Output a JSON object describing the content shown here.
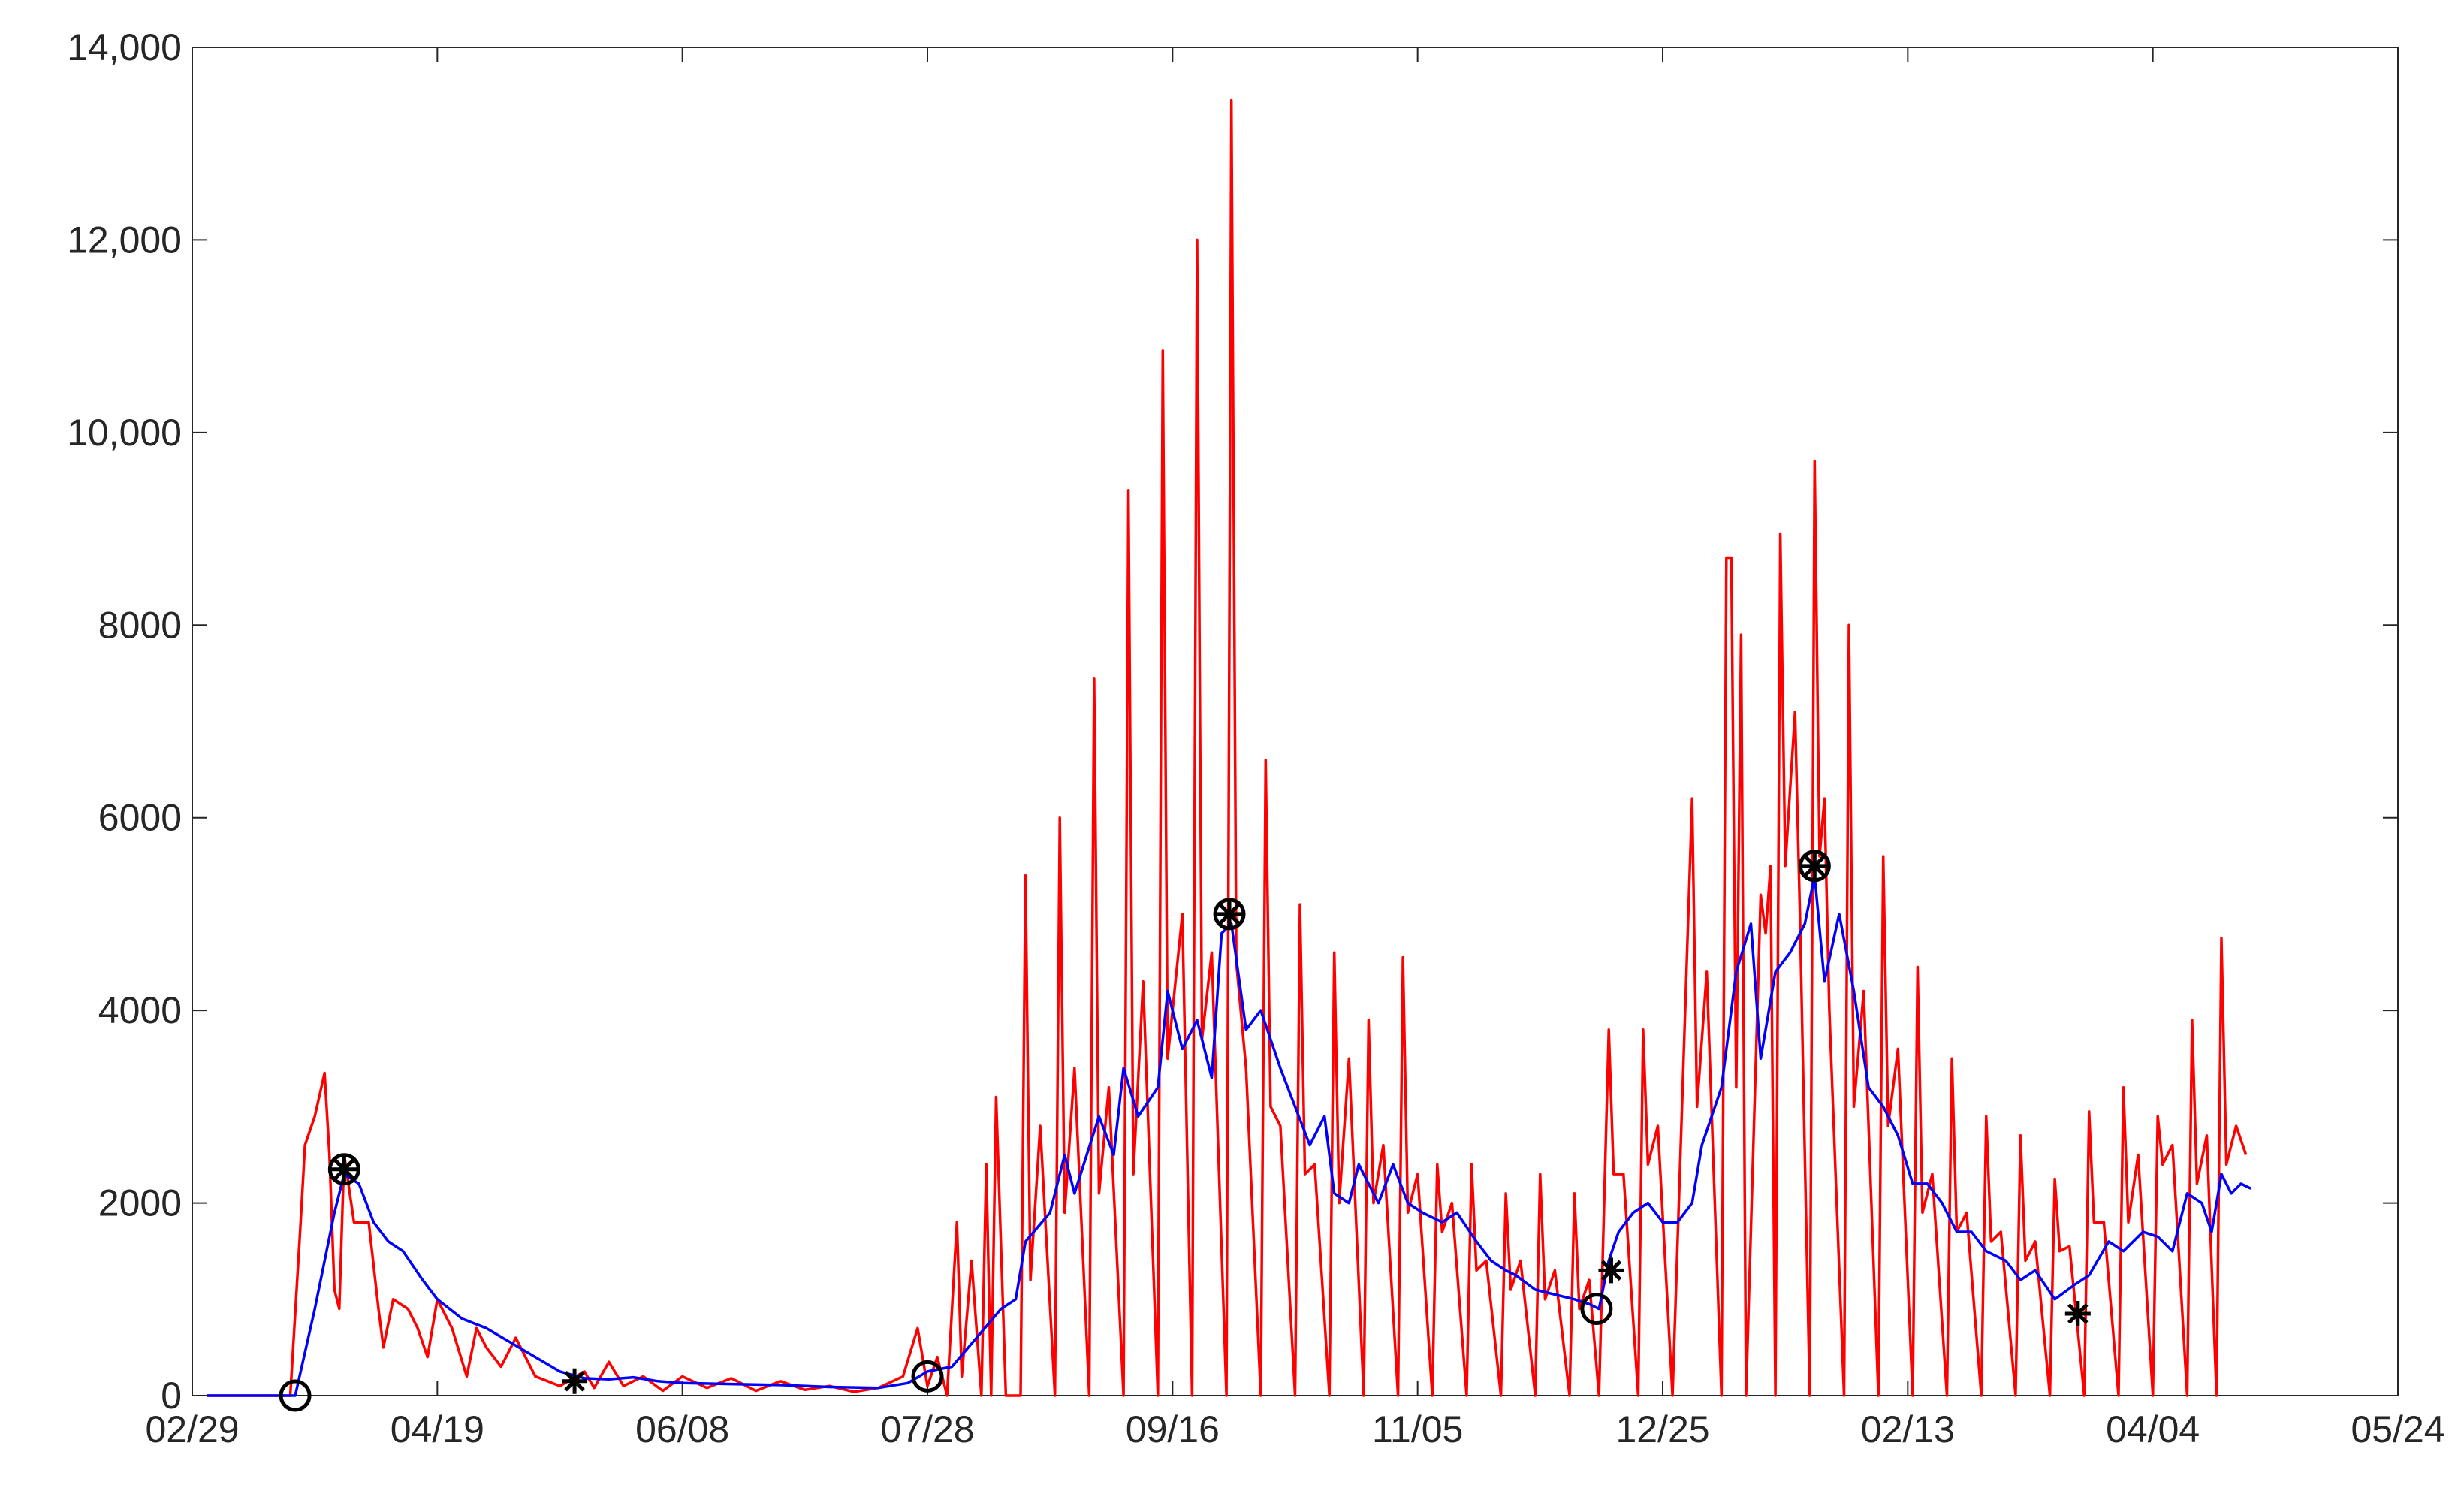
{
  "chart_data": {
    "type": "line",
    "xlim": [
      0,
      450
    ],
    "xticks": [
      {
        "value": 0,
        "label": "02/29"
      },
      {
        "value": 50,
        "label": "04/19"
      },
      {
        "value": 100,
        "label": "06/08"
      },
      {
        "value": 150,
        "label": "07/28"
      },
      {
        "value": 200,
        "label": "09/16"
      },
      {
        "value": 250,
        "label": "11/05"
      },
      {
        "value": 300,
        "label": "12/25"
      },
      {
        "value": 350,
        "label": "02/13"
      },
      {
        "value": 400,
        "label": "04/04"
      },
      {
        "value": 450,
        "label": "05/24"
      }
    ],
    "ylim": [
      0,
      14000
    ],
    "yticks": [
      0,
      2000,
      4000,
      6000,
      8000,
      {
        "value": 10000,
        "label": "10,000"
      },
      {
        "value": 12000,
        "label": "12,000"
      },
      {
        "value": 14000,
        "label": "14,000"
      }
    ],
    "series": [
      {
        "color": "#ff0000",
        "x": [
          3,
          20,
          22,
          23,
          25,
          27,
          28,
          29,
          30,
          31,
          33,
          36,
          38,
          39,
          41,
          44,
          46,
          48,
          50,
          53,
          56,
          58,
          60,
          63,
          66,
          70,
          75,
          80,
          82,
          85,
          88,
          92,
          96,
          100,
          105,
          110,
          115,
          120,
          125,
          130,
          135,
          140,
          145,
          148,
          150,
          152,
          154,
          156,
          157,
          159,
          161,
          162,
          163,
          164,
          166,
          169,
          170,
          171,
          173,
          176,
          177,
          178,
          180,
          183,
          184,
          185,
          187,
          190,
          191,
          192,
          194,
          197,
          198,
          199,
          202,
          204,
          205,
          206,
          208,
          211,
          212,
          213,
          215,
          218,
          219,
          220,
          222,
          225,
          226,
          227,
          229,
          232,
          233,
          234,
          236,
          239,
          240,
          241,
          243,
          246,
          247,
          248,
          250,
          253,
          254,
          255,
          257,
          260,
          261,
          262,
          264,
          267,
          268,
          269,
          271,
          274,
          275,
          276,
          278,
          281,
          282,
          283,
          285,
          287,
          289,
          290,
          292,
          295,
          296,
          297,
          299,
          302,
          306,
          307,
          309,
          312,
          313,
          314,
          315,
          316,
          317,
          320,
          321,
          322,
          323,
          324,
          325,
          327,
          328,
          330,
          331,
          332,
          333,
          334,
          337,
          338,
          339,
          341,
          344,
          345,
          346,
          348,
          351,
          352,
          353,
          355,
          358,
          359,
          360,
          362,
          365,
          366,
          367,
          369,
          372,
          373,
          374,
          376,
          379,
          380,
          381,
          383,
          386,
          387,
          388,
          390,
          393,
          394,
          395,
          397,
          400,
          401,
          402,
          404,
          407,
          408,
          409,
          411,
          413,
          414,
          415,
          417,
          419
        ],
        "values": [
          0,
          0,
          1700,
          2600,
          2900,
          3350,
          2500,
          1100,
          900,
          2500,
          1800,
          1800,
          900,
          500,
          1000,
          900,
          700,
          400,
          1000,
          700,
          200,
          700,
          500,
          300,
          600,
          200,
          100,
          250,
          80,
          350,
          100,
          200,
          50,
          200,
          80,
          180,
          50,
          150,
          60,
          100,
          40,
          80,
          200,
          700,
          100,
          400,
          0,
          1800,
          200,
          1400,
          0,
          2400,
          0,
          3100,
          0,
          0,
          5400,
          1200,
          2800,
          0,
          6000,
          1900,
          3400,
          0,
          7450,
          2100,
          3200,
          0,
          9400,
          2300,
          4300,
          0,
          10850,
          3500,
          5000,
          0,
          12000,
          3700,
          4600,
          0,
          13450,
          4500,
          3400,
          0,
          6600,
          3000,
          2800,
          0,
          5100,
          2300,
          2400,
          0,
          4600,
          2000,
          3500,
          0,
          3900,
          2000,
          2600,
          0,
          4550,
          1900,
          2300,
          0,
          2400,
          1700,
          2000,
          0,
          2400,
          1300,
          1400,
          0,
          2100,
          1100,
          1400,
          0,
          2300,
          1000,
          1300,
          0,
          2100,
          900,
          1200,
          0,
          3800,
          2300,
          2300,
          0,
          3800,
          2400,
          2800,
          0,
          6200,
          3000,
          4400,
          0,
          8700,
          8700,
          3200,
          7900,
          0,
          5200,
          4800,
          5500,
          0,
          8950,
          5500,
          7100,
          5000,
          0,
          9700,
          5600,
          6200,
          4000,
          0,
          8000,
          3000,
          4200,
          0,
          5600,
          2800,
          3600,
          0,
          4450,
          1900,
          2300,
          0,
          3500,
          1700,
          1900,
          0,
          2900,
          1600,
          1700,
          0,
          2700,
          1400,
          1600,
          0,
          2250,
          1500,
          1550,
          0,
          2950,
          1800,
          1800,
          0,
          3200,
          1800,
          2500,
          0,
          2900,
          2400,
          2600,
          0,
          3900,
          2200,
          2700,
          0,
          4750,
          2400,
          2800,
          2500
        ]
      },
      {
        "color": "#0000ff",
        "x": [
          3,
          21,
          25,
          29,
          31,
          34,
          37,
          40,
          43,
          47,
          50,
          55,
          60,
          65,
          70,
          75,
          80,
          85,
          90,
          95,
          100,
          110,
          120,
          130,
          140,
          146,
          150,
          155,
          160,
          165,
          168,
          170,
          175,
          178,
          180,
          185,
          188,
          190,
          193,
          197,
          199,
          202,
          205,
          208,
          210,
          212,
          215,
          218,
          222,
          225,
          228,
          231,
          233,
          236,
          238,
          242,
          245,
          248,
          251,
          255,
          258,
          262,
          265,
          268,
          270,
          274,
          278,
          282,
          285,
          287,
          289,
          291,
          294,
          297,
          300,
          303,
          306,
          308,
          312,
          315,
          318,
          320,
          323,
          326,
          329,
          331,
          333,
          336,
          339,
          342,
          345,
          348,
          351,
          354,
          357,
          360,
          363,
          366,
          370,
          373,
          376,
          380,
          384,
          387,
          391,
          394,
          398,
          401,
          404,
          407,
          410,
          412,
          414,
          416,
          418,
          420
        ],
        "values": [
          0,
          0,
          900,
          1900,
          2300,
          2200,
          1800,
          1600,
          1500,
          1200,
          1000,
          800,
          700,
          550,
          400,
          250,
          180,
          170,
          190,
          150,
          130,
          120,
          110,
          90,
          80,
          130,
          250,
          300,
          600,
          900,
          1000,
          1600,
          1900,
          2500,
          2100,
          2900,
          2500,
          3400,
          2900,
          3200,
          4200,
          3600,
          3900,
          3300,
          4800,
          4900,
          3800,
          4000,
          3400,
          3000,
          2600,
          2900,
          2100,
          2000,
          2400,
          2000,
          2400,
          2000,
          1900,
          1800,
          1900,
          1600,
          1400,
          1300,
          1250,
          1100,
          1050,
          1000,
          950,
          900,
          1400,
          1700,
          1900,
          2000,
          1800,
          1800,
          2000,
          2600,
          3200,
          4400,
          4900,
          3500,
          4400,
          4600,
          4900,
          5400,
          4300,
          5000,
          4200,
          3200,
          3000,
          2700,
          2200,
          2200,
          2000,
          1700,
          1700,
          1500,
          1400,
          1200,
          1300,
          1000,
          1150,
          1250,
          1600,
          1500,
          1700,
          1650,
          1500,
          2100,
          2000,
          1700,
          2300,
          2100,
          2200,
          2150
        ]
      }
    ],
    "markers": [
      {
        "marker": "o",
        "color": "#000000",
        "x": [
          21,
          31,
          150,
          211.6,
          286.5,
          331
        ],
        "values": [
          0,
          2350,
          200,
          5000,
          900,
          5500
        ]
      },
      {
        "marker": "*",
        "color": "#000000",
        "x": [
          31,
          78,
          211.6,
          289.5,
          331,
          384.7
        ],
        "values": [
          2350,
          150,
          5000,
          1300,
          5500,
          850
        ]
      }
    ]
  }
}
